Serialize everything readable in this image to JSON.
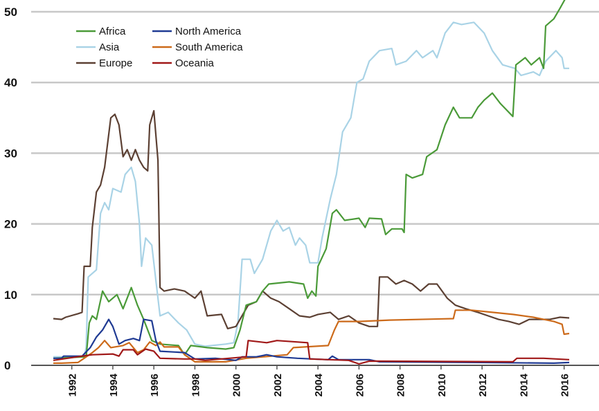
{
  "chart_data": {
    "type": "line",
    "xlim": [
      1988.5,
      2017.7
    ],
    "ylim": [
      0,
      50
    ],
    "xticks": [
      1992,
      1994,
      1996,
      1998,
      2000,
      2002,
      2004,
      2006,
      2008,
      2010,
      2012,
      2014,
      2016
    ],
    "yticks": [
      0,
      10,
      20,
      30,
      40,
      50
    ],
    "grid": true,
    "legend": "upper left",
    "series": [
      {
        "name": "Africa",
        "color": "#4a9a38",
        "x": [
          1991.1,
          1992.7,
          1992.85,
          1993.0,
          1993.2,
          1993.5,
          1993.8,
          1994.2,
          1994.5,
          1994.9,
          1995.2,
          1995.5,
          1995.9,
          1996.3,
          1997.2,
          1997.5,
          1997.8,
          1998.6,
          1999.5,
          1999.9,
          2000.2,
          2000.5,
          2001.0,
          2001.3,
          2001.6,
          2002.6,
          2003.3,
          2003.5,
          2003.7,
          2003.9,
          2004.0,
          2004.4,
          2004.7,
          2004.9,
          2005.3,
          2006.0,
          2006.3,
          2006.5,
          2007.1,
          2007.3,
          2007.6,
          2008.1,
          2008.2,
          2008.3,
          2008.6,
          2009.1,
          2009.3,
          2009.8,
          2010.2,
          2010.6,
          2010.9,
          2011.5,
          2011.8,
          2012.1,
          2012.5,
          2012.9,
          2013.5,
          2013.65,
          2014.1,
          2014.4,
          2014.8,
          2015.0,
          2015.1,
          2015.5,
          2015.8,
          2016.05
        ],
        "values": [
          1.0,
          1.2,
          6,
          7,
          6.5,
          10.5,
          9,
          10,
          8,
          11,
          8.5,
          6.5,
          3.5,
          3,
          2.8,
          1.5,
          2.8,
          2.5,
          2.3,
          2.5,
          5,
          8.5,
          9,
          10.5,
          11.5,
          11.8,
          11.5,
          9.5,
          10.5,
          9.8,
          14,
          16.5,
          21.5,
          22,
          20.5,
          20.8,
          19.5,
          20.8,
          20.7,
          18.5,
          19.3,
          19.3,
          18.8,
          27,
          26.5,
          27,
          29.5,
          30.5,
          34,
          36.5,
          35,
          35,
          36.5,
          37.5,
          38.5,
          37,
          35.2,
          42.5,
          43.5,
          42.5,
          43.5,
          42,
          48,
          49,
          50.5,
          51.8
        ]
      },
      {
        "name": "Asia",
        "color": "#a9d3e6",
        "x": [
          1991.1,
          1992.6,
          1992.7,
          1992.8,
          1993.2,
          1993.4,
          1993.6,
          1993.8,
          1994.0,
          1994.4,
          1994.6,
          1994.9,
          1995.1,
          1995.3,
          1995.4,
          1995.6,
          1995.9,
          1996.1,
          1996.3,
          1996.7,
          1997.2,
          1997.6,
          1998.0,
          1998.5,
          1999.5,
          1999.9,
          2000.1,
          2000.3,
          2000.7,
          2000.9,
          2001.3,
          2001.7,
          2002.0,
          2002.3,
          2002.6,
          2002.9,
          2003.1,
          2003.4,
          2003.6,
          2004.0,
          2004.2,
          2004.6,
          2004.9,
          2005.2,
          2005.6,
          2005.9,
          2006.2,
          2006.5,
          2007.0,
          2007.6,
          2007.8,
          2008.3,
          2008.8,
          2009.1,
          2009.6,
          2009.8,
          2010.2,
          2010.6,
          2011.0,
          2011.6,
          2012.1,
          2012.5,
          2013.0,
          2013.6,
          2013.9,
          2014.5,
          2014.8,
          2015.1,
          2015.6,
          2015.9,
          2016.0,
          2016.25
        ],
        "values": [
          1.2,
          1.2,
          2.5,
          12.5,
          13.5,
          21.5,
          23,
          22,
          25,
          24.5,
          27,
          28,
          26,
          20,
          14,
          18,
          17,
          12,
          7,
          7.5,
          6,
          5,
          3,
          2.7,
          3,
          3.2,
          6,
          15,
          15,
          13,
          15,
          19,
          20.5,
          19,
          19.5,
          17,
          18,
          17,
          14.5,
          14.5,
          18,
          23.5,
          27,
          33,
          35,
          40,
          40.5,
          43,
          44.5,
          44.8,
          42.5,
          43,
          44.5,
          43.5,
          44.5,
          43.5,
          47,
          48.5,
          48.2,
          48.5,
          47,
          44.5,
          42.5,
          42,
          41,
          41.5,
          41,
          43,
          44.5,
          43.5,
          42,
          42
        ]
      },
      {
        "name": "Europe",
        "color": "#5c4033",
        "x": [
          1991.1,
          1991.5,
          1991.7,
          1992.3,
          1992.5,
          1992.6,
          1992.9,
          1993.0,
          1993.2,
          1993.4,
          1993.6,
          1993.9,
          1994.1,
          1994.3,
          1994.5,
          1994.7,
          1994.9,
          1995.1,
          1995.3,
          1995.5,
          1995.7,
          1995.8,
          1996.0,
          1996.2,
          1996.3,
          1996.5,
          1997.0,
          1997.5,
          1998.0,
          1998.3,
          1998.6,
          1999.3,
          1999.6,
          2000.0,
          2000.2,
          2000.6,
          2001.0,
          2001.3,
          2001.7,
          2002.1,
          2002.6,
          2003.1,
          2003.6,
          2004.0,
          2004.6,
          2005.0,
          2005.5,
          2006.0,
          2006.5,
          2006.9,
          2007.0,
          2007.4,
          2007.8,
          2008.2,
          2008.6,
          2009.0,
          2009.4,
          2009.8,
          2010.3,
          2010.7,
          2011.2,
          2011.8,
          2012.3,
          2012.8,
          2013.3,
          2013.8,
          2014.3,
          2014.8,
          2015.3,
          2015.8,
          2016.25
        ],
        "values": [
          6.6,
          6.5,
          6.8,
          7.3,
          7.5,
          14,
          14,
          19.5,
          24.5,
          25.5,
          28,
          35,
          35.5,
          34,
          29.5,
          30.5,
          29,
          30.5,
          29,
          28,
          27.5,
          34,
          36,
          29,
          11,
          10.5,
          10.8,
          10.5,
          9.5,
          10.5,
          7,
          7.2,
          5.2,
          5.5,
          6.5,
          8.5,
          9,
          10.5,
          9.5,
          9,
          8,
          7,
          6.8,
          7.2,
          7.5,
          6.5,
          7,
          6,
          5.5,
          5.5,
          12.5,
          12.5,
          11.5,
          12,
          11.5,
          10.5,
          11.5,
          11.5,
          9.5,
          8.5,
          8,
          7.5,
          7,
          6.5,
          6.2,
          5.8,
          6.5,
          6.5,
          6.5,
          6.8,
          6.7
        ]
      },
      {
        "name": "North America",
        "color": "#1f3a93",
        "x": [
          1991.1,
          1991.5,
          1991.6,
          1992.5,
          1992.9,
          1993.2,
          1993.5,
          1993.8,
          1994.0,
          1994.3,
          1994.6,
          1995.0,
          1995.3,
          1995.5,
          1995.9,
          1996.1,
          1996.3,
          1997.5,
          1998.0,
          1999.0,
          2000.0,
          2000.3,
          2001.0,
          2001.5,
          2002.0,
          2003.0,
          2004.5,
          2004.7,
          2005.0,
          2006.5,
          2007.0,
          2012.0,
          2015.5,
          2016.25
        ],
        "values": [
          1.0,
          1.0,
          1.3,
          1.3,
          2.5,
          4,
          5,
          6.5,
          5.5,
          3,
          3.5,
          3.8,
          3.5,
          6.5,
          6.3,
          3.5,
          2,
          1.8,
          0.9,
          1.0,
          0.7,
          1.2,
          1.2,
          1.5,
          1.2,
          1.0,
          0.8,
          1.3,
          0.8,
          0.8,
          0.5,
          0.4,
          0.3,
          0.4
        ]
      },
      {
        "name": "South America",
        "color": "#cc6a1a",
        "x": [
          1991.1,
          1991.5,
          1992.3,
          1992.6,
          1993.0,
          1993.3,
          1993.6,
          1993.9,
          1994.5,
          1994.8,
          1995.2,
          1995.5,
          1995.8,
          1996.1,
          1996.3,
          1996.5,
          1997.2,
          1997.5,
          1998.0,
          1999.5,
          2000.5,
          2002.5,
          2002.8,
          2004.5,
          2004.8,
          2005.0,
          2006.0,
          2007.5,
          2010.6,
          2010.7,
          2011.5,
          2012.5,
          2013.5,
          2014.5,
          2015.5,
          2015.9,
          2016.0,
          2016.25
        ],
        "values": [
          0.3,
          0.3,
          0.4,
          1.0,
          1.8,
          2.5,
          3.5,
          2.5,
          2.8,
          3.2,
          1.8,
          2.2,
          3.3,
          2.8,
          3.3,
          2.6,
          2.6,
          1.5,
          0.5,
          0.5,
          1.0,
          1.5,
          2.5,
          2.8,
          5,
          6.2,
          6.2,
          6.4,
          6.6,
          7.8,
          7.8,
          7.5,
          7.2,
          6.8,
          6.2,
          5.8,
          4.4,
          4.5
        ]
      },
      {
        "name": "Oceania",
        "color": "#a01818",
        "x": [
          1991.1,
          1992.5,
          1993.0,
          1994.0,
          1994.3,
          1994.5,
          1995.0,
          1995.2,
          1995.6,
          1996.0,
          1996.3,
          1997.5,
          1998.0,
          1998.5,
          2000.5,
          2000.6,
          2001.5,
          2002.0,
          2003.5,
          2003.6,
          2005.5,
          2006.0,
          2006.5,
          2013.5,
          2013.7,
          2015.0,
          2016.25
        ],
        "values": [
          0.7,
          1.3,
          1.5,
          1.6,
          1.3,
          2.2,
          2.2,
          1.5,
          2.3,
          2.0,
          1.0,
          0.9,
          0.9,
          0.7,
          1.2,
          3.5,
          3.2,
          3.5,
          3.2,
          0.9,
          0.7,
          0.2,
          0.6,
          0.5,
          1.0,
          1.0,
          0.8
        ]
      }
    ]
  }
}
